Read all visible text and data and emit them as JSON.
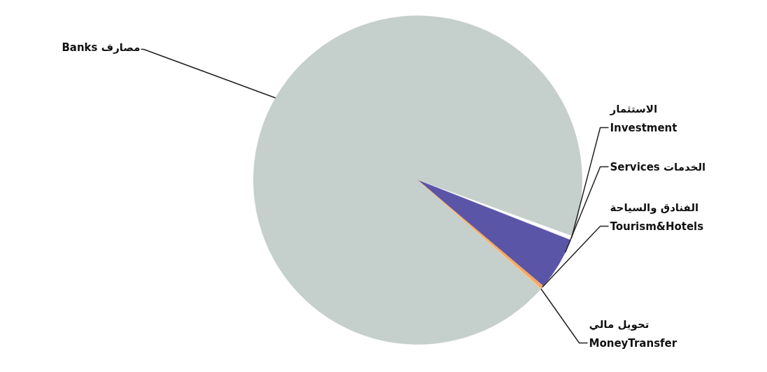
{
  "chart_data": {
    "type": "pie",
    "categories": [
      "Banks مصارف",
      "الاستثمار\nInvestment",
      "Services الخدمات",
      "الفنادق والسياحة\nTourism&Hotels",
      "تحويل مالي\nMoneyTransfer"
    ],
    "values": [
      94.0,
      0.4,
      5.2,
      0.3,
      0.1
    ],
    "colors": [
      "#c5cfcc",
      "#ffffff",
      "#5b55a8",
      "#f5a860",
      "#e6c9a0"
    ]
  }
}
